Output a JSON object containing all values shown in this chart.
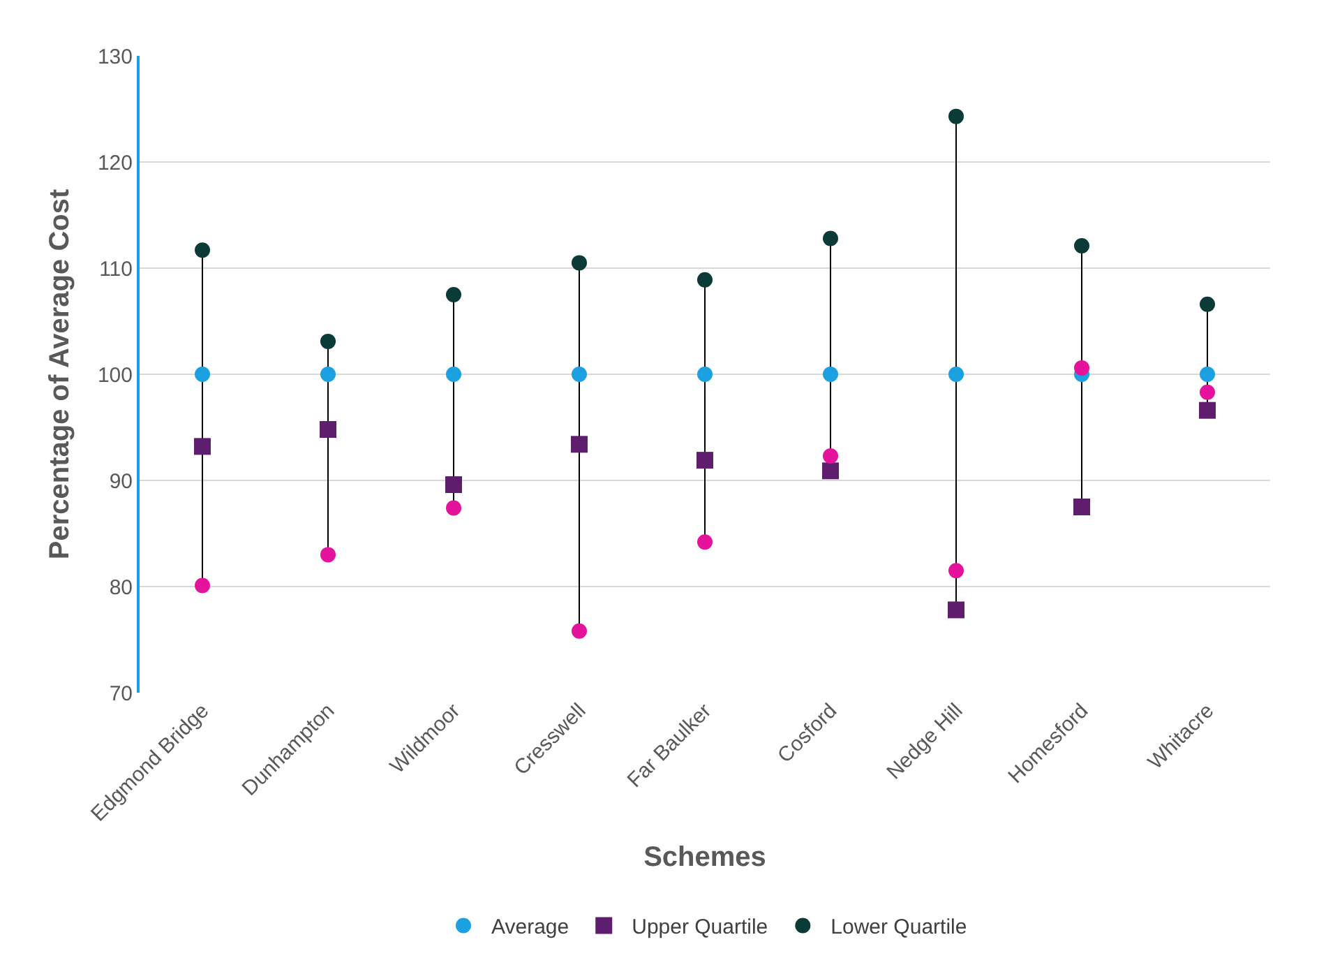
{
  "chart_data": {
    "type": "scatter",
    "xlabel": "Schemes",
    "ylabel": "Percentage of Average Cost",
    "categories": [
      "Edgmond Bridge",
      "Dunhampton",
      "Wildmoor",
      "Cresswell",
      "Far Baulker",
      "Cosford",
      "Nedge Hill",
      "Homesford",
      "Whitacre"
    ],
    "ylim": [
      70,
      130
    ],
    "yticks": [
      70,
      80,
      90,
      100,
      110,
      120,
      130
    ],
    "grid": "y",
    "legend": "bottom",
    "series": [
      {
        "name": "Average",
        "color": "#1ba1e2",
        "marker": "circle",
        "values": [
          100,
          100,
          100,
          100,
          100,
          100,
          100,
          100,
          100
        ]
      },
      {
        "name": "Upper Quartile",
        "color": "#5f1d6e",
        "marker": "square",
        "values": [
          93.2,
          94.8,
          89.6,
          93.4,
          91.9,
          90.9,
          77.8,
          87.5,
          96.6
        ]
      },
      {
        "name": "Lower Quartile",
        "color": "#0b3b36",
        "marker": "circle",
        "values": [
          111.7,
          103.1,
          107.5,
          110.5,
          108.9,
          112.8,
          124.3,
          112.1,
          106.6
        ]
      },
      {
        "color": "#e5139b",
        "marker": "circle",
        "values": [
          80.1,
          83.0,
          87.4,
          75.8,
          84.2,
          92.3,
          81.5,
          100.6,
          98.3
        ]
      }
    ]
  }
}
